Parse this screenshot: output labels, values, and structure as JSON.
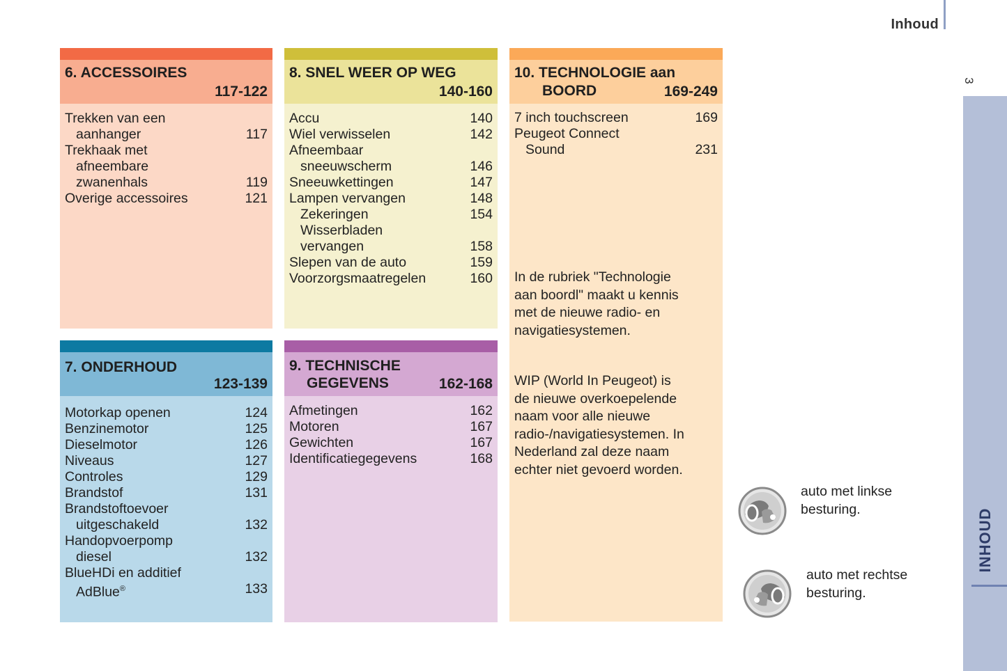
{
  "header": {
    "title": "Inhoud",
    "page_number": "3"
  },
  "side_tab": {
    "label": "INHOUD"
  },
  "panels": {
    "accessoires": {
      "title": "6. ACCESSOIRES",
      "pages": "117-122",
      "entries": [
        {
          "l1": "Trekken van een",
          "l2": "aanhanger",
          "page": "117"
        },
        {
          "l1": "Trekhaak met",
          "l2": "afneembare",
          "l3": "zwanenhals",
          "page": "119"
        },
        {
          "l1": "Overige accessoires",
          "page": "121"
        }
      ]
    },
    "onderhoud": {
      "title": "7.",
      "title_b": "ONDERHOUD",
      "pages": "123-139",
      "entries": [
        {
          "l1": "Motorkap openen",
          "page": "124"
        },
        {
          "l1": "Benzinemotor",
          "page": "125"
        },
        {
          "l1": "Dieselmotor",
          "page": "126"
        },
        {
          "l1": "Niveaus",
          "page": "127"
        },
        {
          "l1": "Controles",
          "page": "129"
        },
        {
          "l1": "Brandstof",
          "page": "131"
        },
        {
          "l1": "Brandstoftoevoer",
          "l2": "uitgeschakeld",
          "page": "132"
        },
        {
          "l1": "Handopvoerpomp",
          "l2": "diesel",
          "page": "132"
        },
        {
          "l1": "BlueHDi en additief",
          "l2": "AdBlue",
          "sup": "®",
          "page": "133"
        }
      ]
    },
    "snel": {
      "title": "8. SNEL WEER OP WEG",
      "pages": "140-160",
      "entries": [
        {
          "l1": "Accu",
          "page": "140"
        },
        {
          "l1": "Wiel verwisselen",
          "page": "142"
        },
        {
          "l1": "Afneembaar",
          "l2": "sneeuwscherm",
          "page": "146"
        },
        {
          "l1": "Sneeuwkettingen",
          "page": "147"
        },
        {
          "l1": "Lampen vervangen",
          "page": "148"
        },
        {
          "i1": "Zekeringen",
          "page": "154"
        },
        {
          "i1": "Wisserbladen",
          "l2": "vervangen",
          "page": "158"
        },
        {
          "l1": "Slepen van de auto",
          "page": "159"
        },
        {
          "l1": "Voorzorgsmaatregelen",
          "page": "160"
        }
      ]
    },
    "technisch": {
      "title": "9. TECHNISCHE",
      "title2": "GEGEVENS",
      "pages": "162-168",
      "entries": [
        {
          "l1": "Afmetingen",
          "page": "162"
        },
        {
          "l1": "Motoren",
          "page": "167"
        },
        {
          "l1": "Gewichten",
          "page": "167"
        },
        {
          "l1": "Identificatiegegevens",
          "page": "168"
        }
      ]
    },
    "technologie": {
      "title": "10. TECHNOLOGIE aan",
      "title2": "BOORD",
      "pages": "169-249",
      "entries": [
        {
          "l1": "7 inch touchscreen",
          "page": "169"
        },
        {
          "l1": "Peugeot Connect",
          "l2": "Sound",
          "page": "231"
        }
      ],
      "para1": [
        "In de rubriek \"Technologie",
        "aan boordl\" maakt u kennis",
        "met de nieuwe radio- en",
        "navigatiesystemen."
      ],
      "para2": [
        "WIP (World In Peugeot) is",
        "de nieuwe overkoepelende",
        "naam voor alle nieuwe",
        "radio-/navigatiesystemen. In",
        "Nederland zal deze naam",
        "echter niet gevoerd worden."
      ]
    }
  },
  "legend": {
    "lhd": {
      "icon": "left-hand-drive-icon",
      "line1": "auto met linkse",
      "line2": "besturing."
    },
    "rhd": {
      "icon": "right-hand-drive-icon",
      "line1": "auto met rechtse",
      "line2": "besturing."
    }
  },
  "colors": {
    "accessoires": {
      "stripe": "#f26a45",
      "head": "#f8ad90",
      "body": "#fcd8c6"
    },
    "onderhoud": {
      "stripe": "#0d7aa2",
      "head": "#7fb8d6",
      "body": "#b9d9ea"
    },
    "snel": {
      "stripe": "#cfbf3a",
      "head": "#ebe39a",
      "body": "#f5f1cf"
    },
    "technisch": {
      "stripe": "#a85ea6",
      "head": "#d4a8d2",
      "body": "#e8d0e6"
    },
    "technologie": {
      "stripe": "#fba958",
      "head": "#fdcf9c",
      "body": "#fde6c8"
    },
    "side_tab": "#b4bfd8"
  }
}
